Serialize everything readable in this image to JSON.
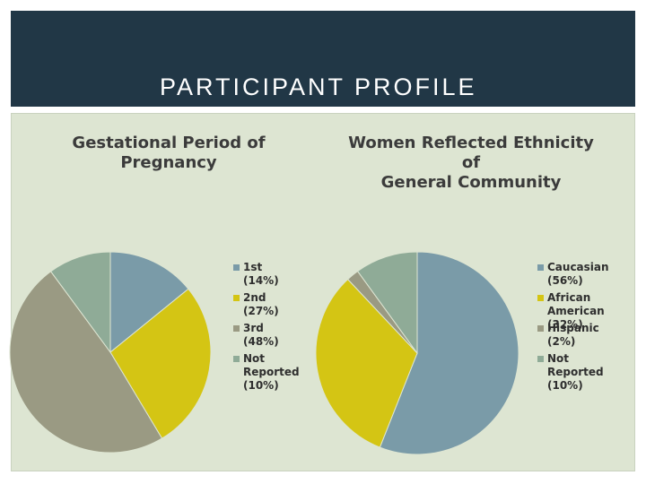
{
  "slide": {
    "title": "PARTICIPANT PROFILE"
  },
  "colors": {
    "header_bg": "#213746",
    "panel_bg": "#dde5d2",
    "blue": "#7a9ba8",
    "yellow": "#d4c514",
    "gray": "#9a9a83",
    "sage": "#8fab97"
  },
  "chart_data": [
    {
      "type": "pie",
      "title_line1": "Gestational Period of",
      "title_line2": "Pregnancy",
      "start": "top, clockwise",
      "legend_position": "right",
      "slices": [
        {
          "label": "1st (14%)",
          "label_line1": "1st (14%)",
          "label_line2": "",
          "value": 14,
          "color": "#7a9ba8"
        },
        {
          "label": "2nd (27%)",
          "label_line1": "2nd (27%)",
          "label_line2": "",
          "value": 27,
          "color": "#d4c514"
        },
        {
          "label": "3rd (48%)",
          "label_line1": "3rd (48%)",
          "label_line2": "",
          "value": 48,
          "color": "#9a9a83"
        },
        {
          "label": "Not Reported (10%)",
          "label_line1": "Not Reported",
          "label_line2": "(10%)",
          "value": 10,
          "color": "#8fab97"
        }
      ]
    },
    {
      "type": "pie",
      "title_line1": "Women Reflected Ethnicity of",
      "title_line2": "General Community",
      "start": "top, clockwise",
      "legend_position": "right",
      "slices": [
        {
          "label": "Caucasian (56%)",
          "label_line1": "Caucasian (56%)",
          "label_line2": "",
          "value": 56,
          "color": "#7a9ba8"
        },
        {
          "label": "African American (32%)",
          "label_line1": "African American",
          "label_line2": "(32%)",
          "value": 32,
          "color": "#d4c514"
        },
        {
          "label": "Hispanic (2%)",
          "label_line1": "Hispanic (2%)",
          "label_line2": "",
          "value": 2,
          "color": "#9a9a83"
        },
        {
          "label": "Not Reported (10%)",
          "label_line1": "Not Reported",
          "label_line2": "(10%)",
          "value": 10,
          "color": "#8fab97"
        }
      ]
    }
  ]
}
